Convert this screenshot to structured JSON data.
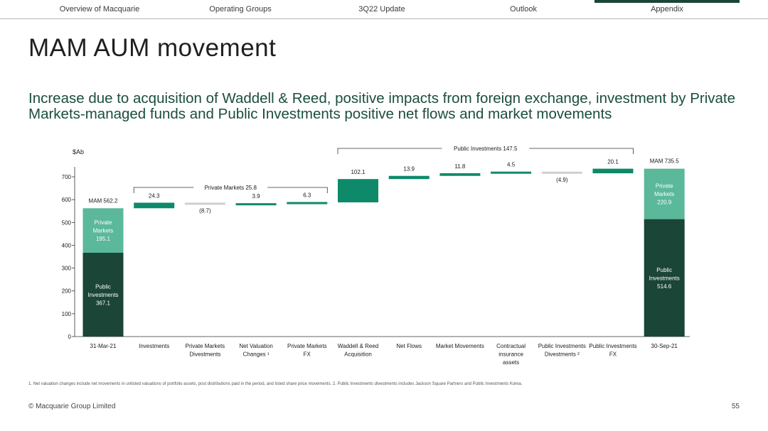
{
  "nav": {
    "tabs": [
      {
        "label": "Overview of Macquarie"
      },
      {
        "label": "Operating Groups"
      },
      {
        "label": "3Q22 Update"
      },
      {
        "label": "Outlook"
      },
      {
        "label": "Appendix"
      }
    ]
  },
  "page": {
    "title": "MAM AUM movement",
    "subtitle": "Increase due to acquisition of Waddell & Reed, positive impacts from foreign exchange, investment by Private Markets-managed funds and Public Investments positive net flows and market movements",
    "footnote": "1. Net valuation changes include net movements in unlisted valuations of portfolio assets, post distributions paid in the period, and listed share price movements.  2. Public Investments divestments includes Jackson Square Partners and Public Investments Korea.",
    "copyright": "© Macquarie Group Limited",
    "page_number": "55"
  },
  "colors": {
    "dark_green": "#1b4536",
    "mid_green": "#0e8a6a",
    "light_green": "#5bb89a",
    "grey": "#cfcfcf",
    "nav_active": "#1b4536"
  },
  "chart_data": {
    "type": "waterfall",
    "unit_label": "$Ab",
    "ylim": [
      0,
      750
    ],
    "yticks": [
      0,
      100,
      200,
      300,
      400,
      500,
      600,
      700
    ],
    "start": {
      "category": "31-Mar-21",
      "total_label": "MAM 562.2",
      "total": 562.2,
      "segments": [
        {
          "name": "Public Investments",
          "label": "Public Investments 367.1",
          "value": 367.1
        },
        {
          "name": "Private Markets",
          "label": "Private Markets 195.1",
          "value": 195.1
        }
      ]
    },
    "steps": [
      {
        "category": "Investments",
        "value": 24.3,
        "label": "24.3",
        "direction": "increase"
      },
      {
        "category": "Private Markets Divestments",
        "value": -8.7,
        "label": "(8.7)",
        "direction": "decrease"
      },
      {
        "category": "Net Valuation Changes ¹",
        "value": 3.9,
        "label": "3.9",
        "direction": "increase"
      },
      {
        "category": "Private Markets FX",
        "value": 6.3,
        "label": "6.3",
        "direction": "increase"
      },
      {
        "category": "Waddell & Reed Acquisition",
        "value": 102.1,
        "label": "102.1",
        "direction": "increase"
      },
      {
        "category": "Net Flows",
        "value": 13.9,
        "label": "13.9",
        "direction": "increase"
      },
      {
        "category": "Market Movements",
        "value": 11.8,
        "label": "11.8",
        "direction": "increase"
      },
      {
        "category": "Contractual insurance assets",
        "value": 4.5,
        "label": "4.5",
        "direction": "increase"
      },
      {
        "category": "Public Investments Divestments ²",
        "value": -4.9,
        "label": "(4.9)",
        "direction": "decrease"
      },
      {
        "category": "Public Investments FX",
        "value": 20.1,
        "label": "20.1",
        "direction": "increase"
      }
    ],
    "end": {
      "category": "30-Sep-21",
      "total_label": "MAM 735.5",
      "total": 735.5,
      "segments": [
        {
          "name": "Public Investments",
          "label": "Public Investments 514.6",
          "value": 514.6
        },
        {
          "name": "Private Markets",
          "label": "Private Markets 220.9",
          "value": 220.9
        }
      ]
    },
    "brackets": [
      {
        "label": "Private Markets 25.8",
        "from_step": 0,
        "to_step": 3
      },
      {
        "label": "Public Investments 147.5",
        "from_step": 4,
        "to_step": 9
      }
    ]
  }
}
